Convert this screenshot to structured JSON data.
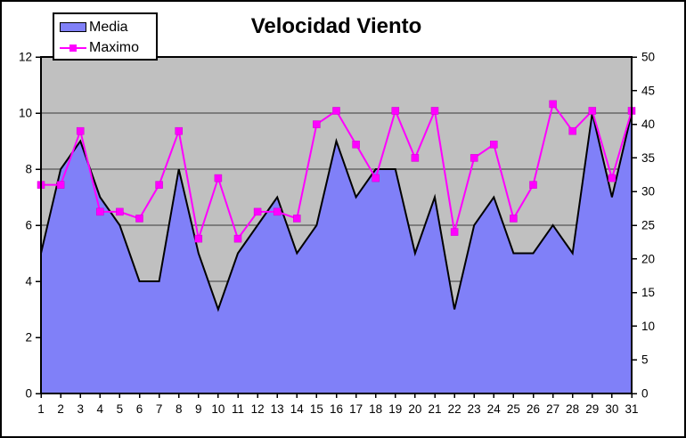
{
  "window": {
    "background_color": "#ffffff",
    "frame_border_color": "#000000"
  },
  "chart_data": {
    "type": "area",
    "subtype": "combo-area-line-two-axes",
    "title": "Velocidad Viento",
    "categories": [
      1,
      2,
      3,
      4,
      5,
      6,
      7,
      8,
      9,
      10,
      11,
      12,
      13,
      14,
      15,
      16,
      17,
      18,
      19,
      20,
      21,
      22,
      23,
      24,
      25,
      26,
      27,
      28,
      29,
      30,
      31
    ],
    "series": [
      {
        "name": "Media",
        "type": "area",
        "y_axis": "left",
        "color": "#8080f8",
        "outline_color": "#000000",
        "values": [
          5,
          8,
          9,
          7,
          6,
          4,
          4,
          8,
          5,
          3,
          5,
          6,
          7,
          5,
          6,
          9,
          7,
          8,
          8,
          5,
          7,
          3,
          6,
          7,
          5,
          5,
          6,
          5,
          10,
          7,
          10
        ]
      },
      {
        "name": "Maximo",
        "type": "line",
        "y_axis": "right",
        "color": "#ff00ff",
        "marker": "square",
        "values": [
          31,
          31,
          39,
          27,
          27,
          26,
          31,
          39,
          23,
          32,
          23,
          27,
          27,
          26,
          40,
          42,
          37,
          32,
          42,
          35,
          42,
          24,
          35,
          37,
          26,
          31,
          43,
          39,
          42,
          32,
          42
        ]
      }
    ],
    "left_axis": {
      "min": 0,
      "max": 12,
      "step": 2,
      "ticks": [
        0,
        2,
        4,
        6,
        8,
        10,
        12
      ]
    },
    "right_axis": {
      "min": 0,
      "max": 50,
      "step": 5,
      "ticks": [
        0,
        5,
        10,
        15,
        20,
        25,
        30,
        35,
        40,
        45,
        50
      ]
    },
    "grid": {
      "horizontal": true,
      "at_left_values": [
        2,
        4,
        6,
        8,
        10
      ],
      "color": "#3a3a3a"
    },
    "plot_background": "#c0c0c0",
    "axis_color": "#000000",
    "tick_label_color": "#000000",
    "legend_position": "top-left"
  },
  "legend": {
    "items": [
      {
        "label": "Media"
      },
      {
        "label": "Maximo"
      }
    ]
  }
}
